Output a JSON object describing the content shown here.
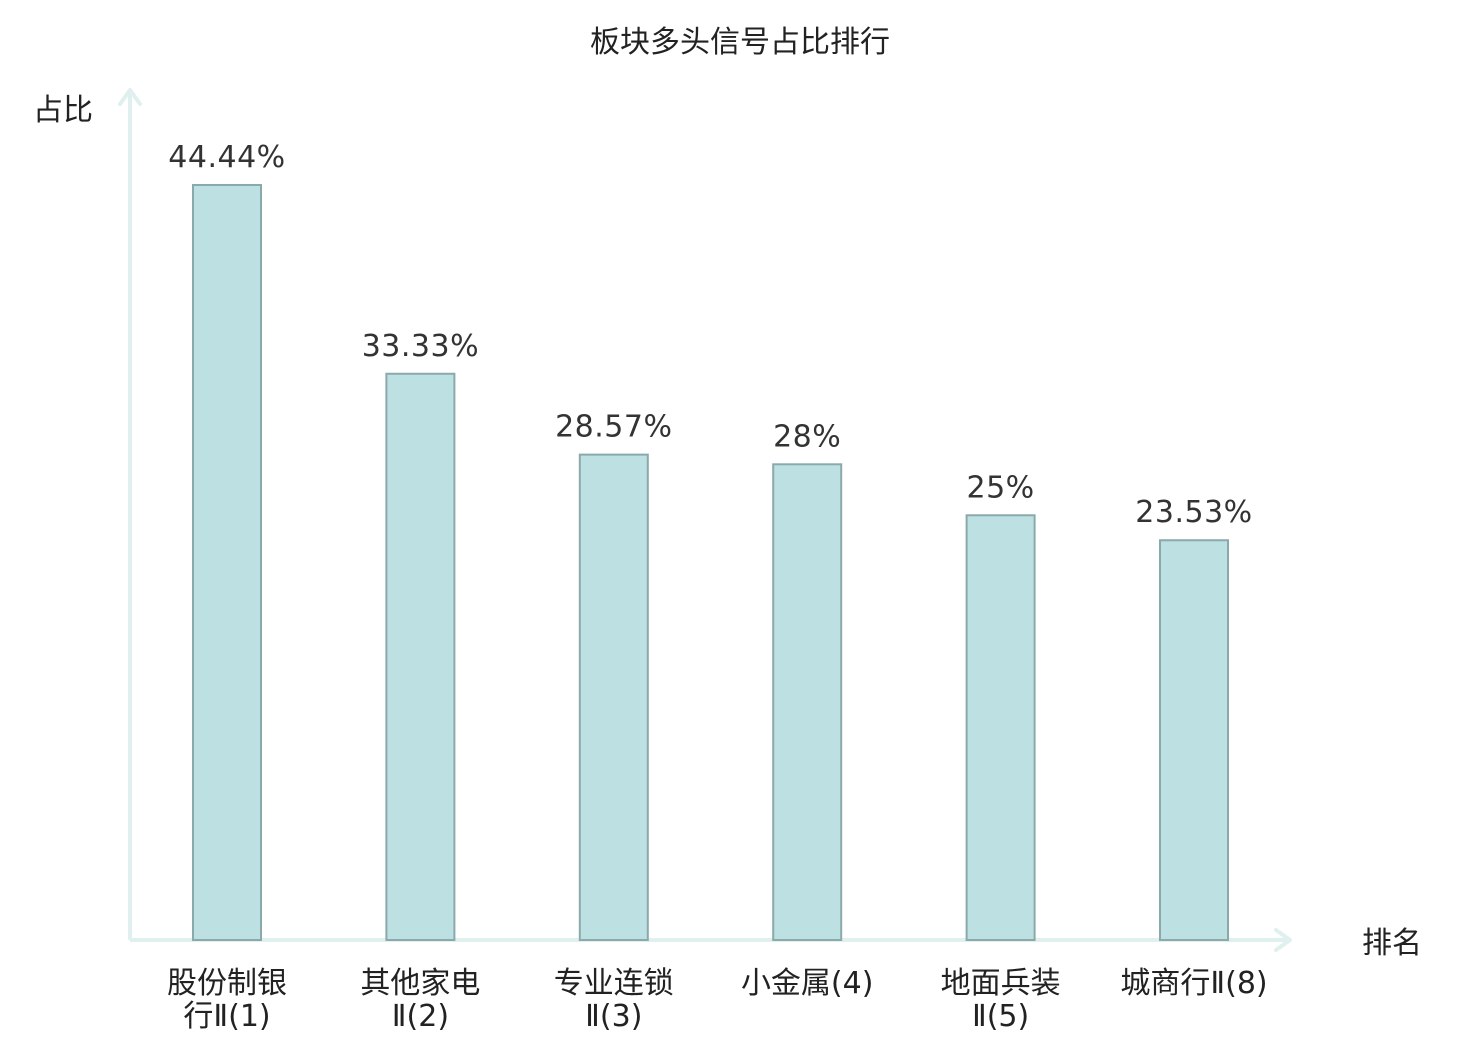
{
  "chart_data": {
    "type": "bar",
    "title": "板块多头信号占比排行",
    "xlabel": "排名",
    "ylabel": "占比",
    "categories": [
      [
        "股份制银",
        "行Ⅱ(1)"
      ],
      [
        "其他家电",
        "Ⅱ(2)"
      ],
      [
        "专业连锁",
        "Ⅱ(3)"
      ],
      [
        "小金属(4)"
      ],
      [
        "地面兵装",
        "Ⅱ(5)"
      ],
      [
        "城商行Ⅱ(8)"
      ]
    ],
    "values": [
      44.44,
      33.33,
      28.57,
      28,
      25,
      23.53
    ],
    "value_labels": [
      "44.44%",
      "33.33%",
      "28.57%",
      "28%",
      "25%",
      "23.53%"
    ],
    "highlight_index": 5,
    "ylim": [
      0,
      50
    ],
    "grid": false,
    "colors": {
      "bar_fill": "#bde0e2",
      "bar_stroke": "#8aa9ab",
      "axis": "#dff0ee",
      "highlight_text": "#e0141b",
      "text": "#222222",
      "value_text": "#333333"
    }
  }
}
